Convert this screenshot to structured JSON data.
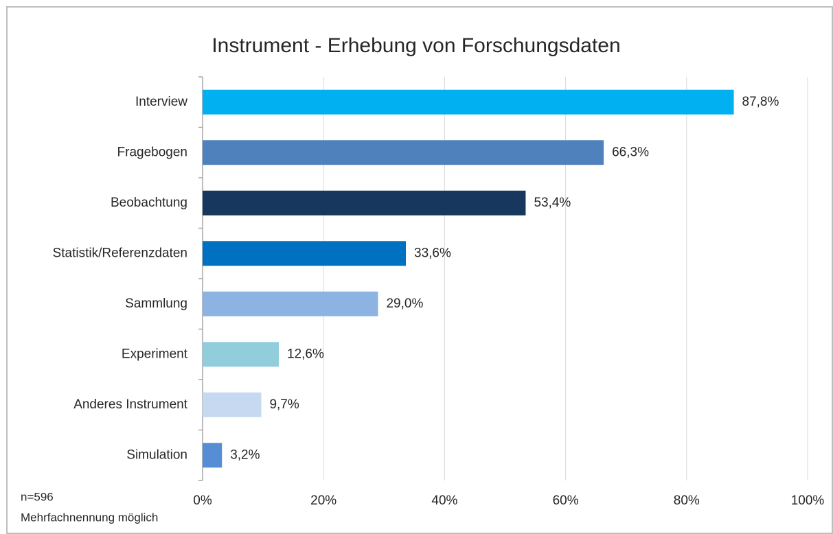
{
  "chart_data": {
    "type": "bar",
    "orientation": "horizontal",
    "title": "Instrument - Erhebung von Forschungsdaten",
    "categories": [
      "Interview",
      "Fragebogen",
      "Beobachtung",
      "Statistik/Referenzdaten",
      "Sammlung",
      "Experiment",
      "Anderes Instrument",
      "Simulation"
    ],
    "values": [
      87.8,
      66.3,
      53.4,
      33.6,
      29.0,
      12.6,
      9.7,
      3.2
    ],
    "value_labels": [
      "87,8%",
      "66,3%",
      "53,4%",
      "33,6%",
      "29,0%",
      "12,6%",
      "9,7%",
      "3,2%"
    ],
    "colors": [
      "#00b0f0",
      "#4f81bd",
      "#17375e",
      "#0070c0",
      "#8db3e2",
      "#92cddc",
      "#c6d9f1",
      "#558ed5"
    ],
    "xlim": [
      0,
      100
    ],
    "xticks": [
      {
        "value": 0,
        "label": "0%"
      },
      {
        "value": 20,
        "label": "20%"
      },
      {
        "value": 40,
        "label": "40%"
      },
      {
        "value": 60,
        "label": "60%"
      },
      {
        "value": 80,
        "label": "80%"
      },
      {
        "value": 100,
        "label": "100%"
      }
    ],
    "grid": true,
    "notes": [
      "n=596",
      "Mehrfachnennung möglich"
    ]
  }
}
